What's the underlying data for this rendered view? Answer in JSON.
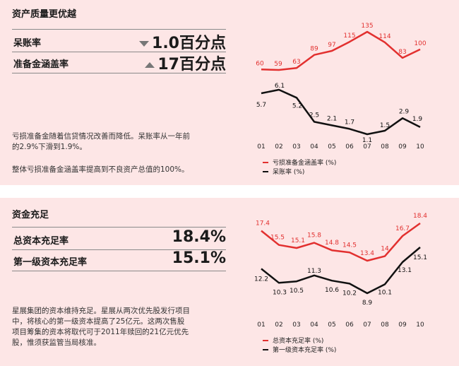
{
  "section1": {
    "title": "资产质量更优越",
    "metric1_label": "呆账率",
    "metric1_value": "1.0百分点",
    "metric1_direction": "down",
    "metric2_label": "准备金涵盖率",
    "metric2_value": "17百分点",
    "metric2_direction": "up",
    "para1_line1": "亏损准备金随着信贷情况改善而降低。呆账率从一年前",
    "para1_line2": "的2.9%下滑到1.9%。",
    "para2": "整体亏损准备金涵盖率提高到不良资产总值的100%。"
  },
  "section2": {
    "title": "资金充足",
    "metric1_label": "总资本充足率",
    "metric1_value": "18.4%",
    "metric2_label": "第一级资本充足率",
    "metric2_value": "15.1%",
    "para_line1": "星展集团的资本维持充足。星展从两次优先股发行项目",
    "para_line2": "中，将核心的第一级资本提高了25亿元。这两次售股",
    "para_line3": "项目筹集的资本将取代可于2011年赎回的21亿元优先",
    "para_line4": "股，惟须获监管当局核准。"
  },
  "colors": {
    "red": "#e2302f",
    "black": "#111111",
    "panel_bg": "#fde6e6",
    "triangle": "#777777"
  },
  "chart_data": [
    {
      "type": "line",
      "categories": [
        "01",
        "02",
        "03",
        "04",
        "05",
        "06",
        "07",
        "08",
        "09",
        "10"
      ],
      "series": [
        {
          "name": "亏损准备金涵盖率 (%)",
          "color": "#e2302f",
          "values": [
            60,
            59,
            63,
            89,
            97,
            115,
            135,
            114,
            83,
            100
          ]
        },
        {
          "name": "呆账率 (%)",
          "color": "#111111",
          "values": [
            5.7,
            6.1,
            5.2,
            2.5,
            2.1,
            1.7,
            1.1,
            1.5,
            2.9,
            1.9
          ]
        }
      ],
      "legend_position": "bottom",
      "grid": false
    },
    {
      "type": "line",
      "categories": [
        "01",
        "02",
        "03",
        "04",
        "05",
        "06",
        "07",
        "08",
        "09",
        "10"
      ],
      "series": [
        {
          "name": "总资本充足率 (%)",
          "color": "#e2302f",
          "values": [
            17.4,
            15.5,
            15.1,
            15.8,
            14.8,
            14.5,
            13.4,
            14.0,
            16.7,
            18.4
          ]
        },
        {
          "name": "第一级资本充足率 (%)",
          "color": "#111111",
          "values": [
            12.2,
            10.3,
            10.5,
            11.3,
            10.6,
            10.2,
            8.9,
            10.1,
            13.1,
            15.1
          ]
        }
      ],
      "legend_position": "bottom",
      "grid": false
    }
  ]
}
